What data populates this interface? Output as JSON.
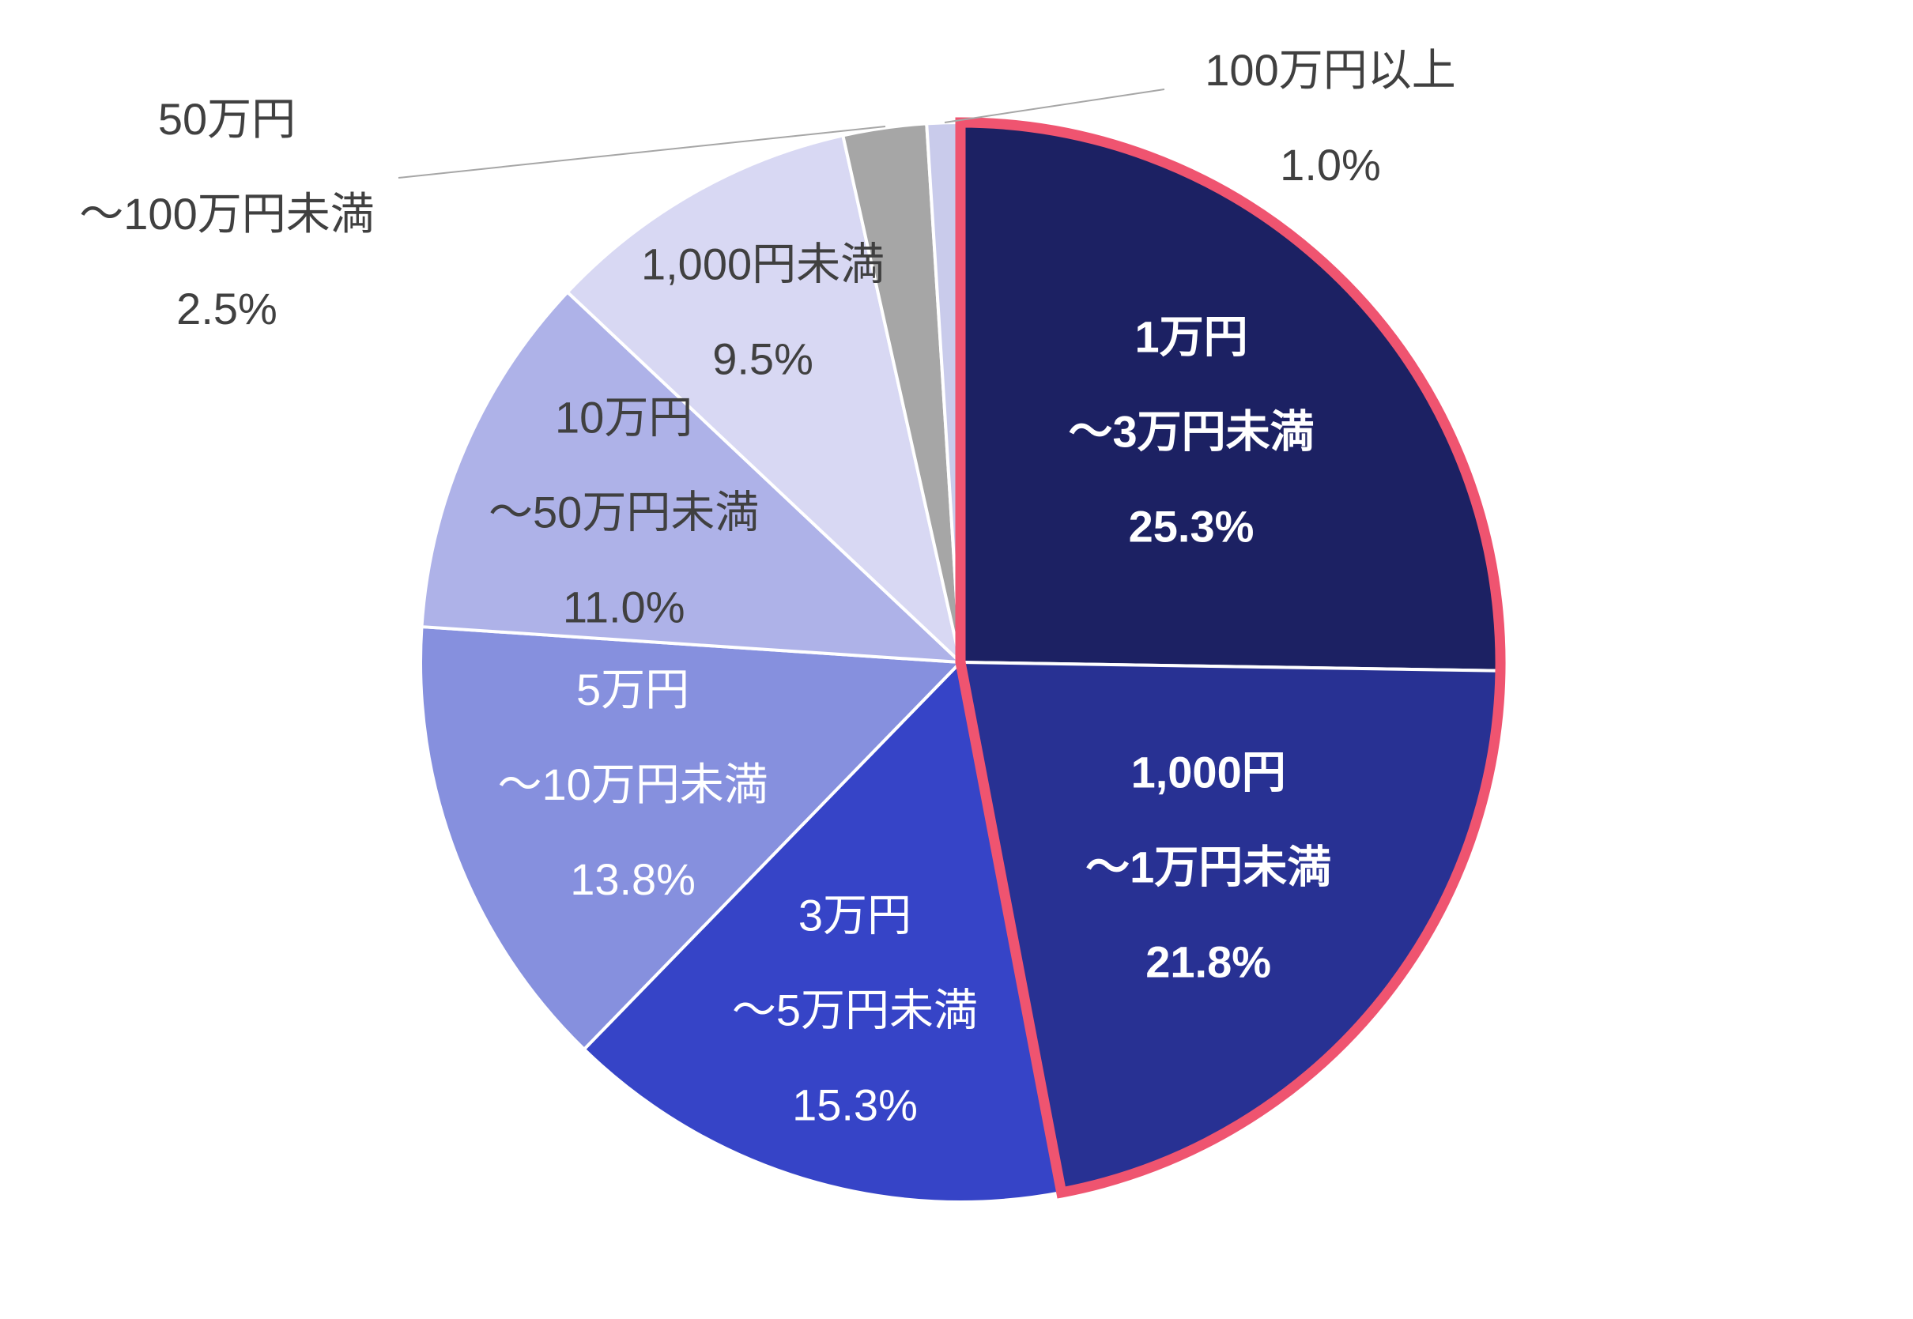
{
  "chart_data": {
    "type": "pie",
    "categories": [
      [
        "1万円",
        "～3万円未満"
      ],
      [
        "1,000円",
        "～1万円未満"
      ],
      [
        "3万円",
        "～5万円未満"
      ],
      [
        "5万円",
        "～10万円未満"
      ],
      [
        "10万円",
        "～50万円未満"
      ],
      [
        "1,000円未満"
      ],
      [
        "50万円",
        "～100万円未満"
      ],
      [
        "100万円以上"
      ]
    ],
    "values": [
      25.3,
      21.8,
      15.3,
      13.8,
      11.0,
      9.5,
      2.5,
      1.0
    ],
    "value_labels": [
      "25.3%",
      "21.8%",
      "15.3%",
      "13.8%",
      "11.0%",
      "9.5%",
      "2.5%",
      "1.0%"
    ],
    "colors": [
      "#1c2163",
      "#283193",
      "#3644c7",
      "#8690de",
      "#aeb2e8",
      "#d8d8f3",
      "#a6a6a6",
      "#c9cbeb"
    ],
    "highlight": {
      "slices": [
        0,
        1
      ],
      "color": "#ef5470"
    }
  }
}
